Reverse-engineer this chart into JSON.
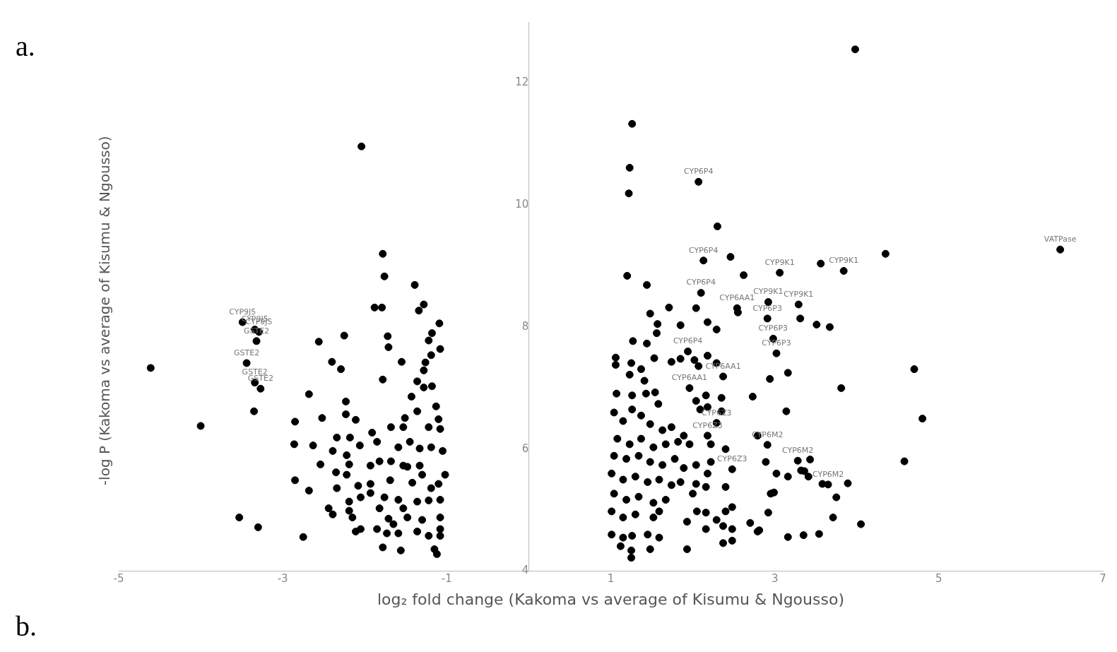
{
  "chart_data": {
    "type": "scatter",
    "xlabel": "log₂ fold change (Kakoma vs average of Kisumu & Ngousso)",
    "ylabel": "-log P (Kakoma vs average of Kisumu & Ngousso)",
    "xlim": [
      -5,
      7
    ],
    "xticks": [
      -5,
      -3,
      -1,
      1,
      3,
      5,
      7
    ],
    "ylim": [
      4,
      13
    ],
    "yticks": [
      4,
      6,
      8,
      10,
      12
    ],
    "grid": false,
    "legend": false,
    "marker": "circle",
    "series": [
      {
        "color": "#000000",
        "x": [
          -4.61,
          -4.0,
          -3.49,
          -3.34,
          -3.29,
          -3.32,
          -3.44,
          -3.34,
          -3.27,
          -3.35,
          -2.56,
          -2.68,
          -2.52,
          -2.85,
          -2.86,
          -2.63,
          -2.54,
          -2.85,
          -2.68,
          -3.53,
          -3.3,
          -2.75,
          -2.04,
          -1.78,
          -1.76,
          -1.39,
          -1.88,
          -1.79,
          -1.28,
          -1.34,
          -1.09,
          -1.18,
          -1.22,
          -1.08,
          -1.19,
          -1.26,
          -1.28,
          -2.25,
          -1.72,
          -1.71,
          -2.4,
          -2.29,
          -1.55,
          -1.78,
          -1.36,
          -1.28,
          -1.18,
          -1.43,
          -1.13,
          -1.36,
          -2.23,
          -2.23,
          -2.11,
          -1.51,
          -1.1,
          -1.08,
          -1.22,
          -1.68,
          -1.53,
          -1.91,
          -1.85,
          -2.34,
          -2.18,
          -2.39,
          -2.06,
          -1.59,
          -1.45,
          -1.33,
          -1.19,
          -1.05,
          -2.22,
          -2.19,
          -1.93,
          -1.82,
          -1.68,
          -1.53,
          -1.48,
          -1.33,
          -1.3,
          -1.02,
          -1.1,
          -1.42,
          -1.19,
          -2.35,
          -2.34,
          -2.22,
          -2.08,
          -2.05,
          -1.93,
          -1.93,
          -1.69,
          -1.76,
          -1.82,
          -1.59,
          -1.53,
          -1.36,
          -1.22,
          -1.08,
          -2.44,
          -2.39,
          -2.19,
          -2.19,
          -2.15,
          -1.71,
          -1.65,
          -1.48,
          -1.3,
          -1.08,
          -1.08,
          -1.85,
          -1.73,
          -1.59,
          -2.11,
          -2.05,
          -1.36,
          -1.22,
          -1.08,
          -1.78,
          -1.56,
          -1.15,
          -1.12,
          1.26,
          1.23,
          1.22,
          2.07,
          2.3,
          2.13,
          2.46,
          1.2,
          1.44,
          2.62,
          2.1,
          1.71,
          2.04,
          1.48,
          1.57,
          1.56,
          1.85,
          2.18,
          2.29,
          2.54,
          2.55,
          1.27,
          1.44,
          1.06,
          1.06,
          1.25,
          1.37,
          1.53,
          1.74,
          1.85,
          1.94,
          2.02,
          2.07,
          2.18,
          2.29,
          1.23,
          1.41,
          2.37,
          1.07,
          1.26,
          1.43,
          1.54,
          1.58,
          1.96,
          2.16,
          2.35,
          2.73,
          2.04,
          2.09,
          2.18,
          2.35,
          1.04,
          1.15,
          1.26,
          1.37,
          1.48,
          1.63,
          1.74,
          1.89,
          1.96,
          2.29,
          1.08,
          1.23,
          1.37,
          1.52,
          1.67,
          1.82,
          2.18,
          2.22,
          2.4,
          2.79,
          1.04,
          1.19,
          1.34,
          1.48,
          1.63,
          1.78,
          1.89,
          2.04,
          2.22,
          2.48,
          1.01,
          1.15,
          1.3,
          1.45,
          1.59,
          1.74,
          1.85,
          2.04,
          2.18,
          2.16,
          2.4,
          1.04,
          1.19,
          1.34,
          1.52,
          1.67,
          2.0,
          1.01,
          1.15,
          1.3,
          1.52,
          1.59,
          1.93,
          2.05,
          2.16,
          2.29,
          2.4,
          2.48,
          2.16,
          2.37,
          2.48,
          2.7,
          2.79,
          1.01,
          1.15,
          1.26,
          1.45,
          1.59,
          1.12,
          1.25,
          1.48,
          1.93,
          1.25,
          2.37,
          2.48,
          4.35,
          3.56,
          3.84,
          3.06,
          2.92,
          3.29,
          2.91,
          3.31,
          3.51,
          3.67,
          2.98,
          3.02,
          3.16,
          2.94,
          4.7,
          3.81,
          3.14,
          4.8,
          2.91,
          2.89,
          3.28,
          3.43,
          4.58,
          3.02,
          3.16,
          3.32,
          3.36,
          3.41,
          3.58,
          3.65,
          3.89,
          3.75,
          2.95,
          2.99,
          2.92,
          3.71,
          4.05,
          3.16,
          3.35,
          3.54,
          2.81,
          3.98,
          6.48
        ],
        "values": [
          7.33,
          6.38,
          8.08,
          7.96,
          7.92,
          7.77,
          7.41,
          7.09,
          6.99,
          6.62,
          7.76,
          6.9,
          6.51,
          6.45,
          6.08,
          6.06,
          5.75,
          5.49,
          5.32,
          4.88,
          4.72,
          4.56,
          10.96,
          9.2,
          8.83,
          8.69,
          8.32,
          8.32,
          8.37,
          8.27,
          8.06,
          7.9,
          7.78,
          7.64,
          7.54,
          7.42,
          7.29,
          7.86,
          7.85,
          7.67,
          7.43,
          7.31,
          7.43,
          7.14,
          7.11,
          7.01,
          7.03,
          6.86,
          6.7,
          6.62,
          6.78,
          6.57,
          6.48,
          6.51,
          6.49,
          6.33,
          6.36,
          6.36,
          6.36,
          6.27,
          6.12,
          6.19,
          6.19,
          5.97,
          6.06,
          6.03,
          6.12,
          6.01,
          6.03,
          5.97,
          5.9,
          5.75,
          5.73,
          5.8,
          5.8,
          5.73,
          5.71,
          5.73,
          5.58,
          5.58,
          5.43,
          5.45,
          5.36,
          5.62,
          5.36,
          5.58,
          5.4,
          5.21,
          5.43,
          5.28,
          5.49,
          5.21,
          5.03,
          5.17,
          5.03,
          5.14,
          5.16,
          5.17,
          5.03,
          4.93,
          5.14,
          4.99,
          4.88,
          4.86,
          4.77,
          4.88,
          4.84,
          4.88,
          4.69,
          4.69,
          4.62,
          4.62,
          4.65,
          4.69,
          4.65,
          4.58,
          4.58,
          4.39,
          4.34,
          4.36,
          4.28,
          11.33,
          10.61,
          10.19,
          10.38,
          9.65,
          9.09,
          9.15,
          8.84,
          8.69,
          8.85,
          8.56,
          8.32,
          8.31,
          8.22,
          8.05,
          7.9,
          8.03,
          8.08,
          7.96,
          8.31,
          8.24,
          7.77,
          7.73,
          7.5,
          7.38,
          7.41,
          7.31,
          7.49,
          7.43,
          7.48,
          7.6,
          7.46,
          7.36,
          7.53,
          7.41,
          7.22,
          7.12,
          7.19,
          6.91,
          6.88,
          6.91,
          6.93,
          6.74,
          7.0,
          6.88,
          6.84,
          6.86,
          6.79,
          6.65,
          6.69,
          6.62,
          6.6,
          6.46,
          6.65,
          6.55,
          6.41,
          6.31,
          6.36,
          6.22,
          6.08,
          6.43,
          6.17,
          6.08,
          6.17,
          6.03,
          6.08,
          6.12,
          6.22,
          6.08,
          6.0,
          6.22,
          5.89,
          5.84,
          5.89,
          5.79,
          5.74,
          5.84,
          5.69,
          5.74,
          5.79,
          5.67,
          5.6,
          5.5,
          5.55,
          5.46,
          5.5,
          5.41,
          5.46,
          5.43,
          5.6,
          5.38,
          5.38,
          5.27,
          5.17,
          5.22,
          5.12,
          5.17,
          5.27,
          4.98,
          4.88,
          4.93,
          4.88,
          4.98,
          4.81,
          4.98,
          4.96,
          4.84,
          4.98,
          5.05,
          4.69,
          4.74,
          4.69,
          4.79,
          4.65,
          4.6,
          4.55,
          4.58,
          4.6,
          4.55,
          4.41,
          4.34,
          4.36,
          4.36,
          4.22,
          4.46,
          4.5,
          9.2,
          9.04,
          8.92,
          8.89,
          8.41,
          8.37,
          8.14,
          8.14,
          8.04,
          8.0,
          7.81,
          7.57,
          7.25,
          7.15,
          7.31,
          7.0,
          6.62,
          6.5,
          6.07,
          5.79,
          5.81,
          5.83,
          5.8,
          5.6,
          5.55,
          5.65,
          5.64,
          5.55,
          5.43,
          5.42,
          5.44,
          5.21,
          5.27,
          5.29,
          4.96,
          4.88,
          4.77,
          4.56,
          4.59,
          4.61,
          4.67,
          12.55,
          9.27
        ]
      }
    ],
    "annotations": [
      "a.",
      "b.",
      {
        "text": "CYP9J5",
        "x": -3.49,
        "y": 8.08
      },
      {
        "text": "CYP9J5",
        "x": -3.34,
        "y": 7.96
      },
      {
        "text": "CYP9J5",
        "x": -3.29,
        "y": 7.92
      },
      {
        "text": "GSTE2",
        "x": -3.32,
        "y": 7.77
      },
      {
        "text": "GSTE2",
        "x": -3.44,
        "y": 7.41
      },
      {
        "text": "GSTE2",
        "x": -3.34,
        "y": 7.09
      },
      {
        "text": "GSTE2",
        "x": -3.27,
        "y": 6.99
      },
      {
        "text": "CYP6P4",
        "x": 2.07,
        "y": 10.38
      },
      {
        "text": "CYP6P4",
        "x": 2.13,
        "y": 9.09
      },
      {
        "text": "CYP6P4",
        "x": 2.1,
        "y": 8.56
      },
      {
        "text": "CYP6AA1",
        "x": 2.54,
        "y": 8.31
      },
      {
        "text": "CYP9K1",
        "x": 3.06,
        "y": 8.89
      },
      {
        "text": "CYP9K1",
        "x": 3.29,
        "y": 8.37
      },
      {
        "text": "CYP9K1",
        "x": 2.92,
        "y": 8.41
      },
      {
        "text": "CYP9K1",
        "x": 3.84,
        "y": 8.92
      },
      {
        "text": "CYP6P3",
        "x": 2.91,
        "y": 8.14
      },
      {
        "text": "CYP6P3",
        "x": 2.98,
        "y": 7.81
      },
      {
        "text": "CYP6P3",
        "x": 3.02,
        "y": 7.57
      },
      {
        "text": "CYP6P4",
        "x": 1.94,
        "y": 7.6
      },
      {
        "text": "CYP6AA1",
        "x": 2.37,
        "y": 7.19
      },
      {
        "text": "CYP6AA1",
        "x": 1.96,
        "y": 7.0
      },
      {
        "text": "CYP6Z3",
        "x": 2.29,
        "y": 6.43
      },
      {
        "text": "CYP6Z3",
        "x": 2.18,
        "y": 6.22
      },
      {
        "text": "CYP6Z3",
        "x": 2.48,
        "y": 5.67
      },
      {
        "text": "CYP6M2",
        "x": 2.91,
        "y": 6.07
      },
      {
        "text": "CYP6M2",
        "x": 3.28,
        "y": 5.81
      },
      {
        "text": "CYP6M2",
        "x": 3.65,
        "y": 5.42
      },
      {
        "text": "VATPase",
        "x": 6.48,
        "y": 9.27
      }
    ]
  }
}
